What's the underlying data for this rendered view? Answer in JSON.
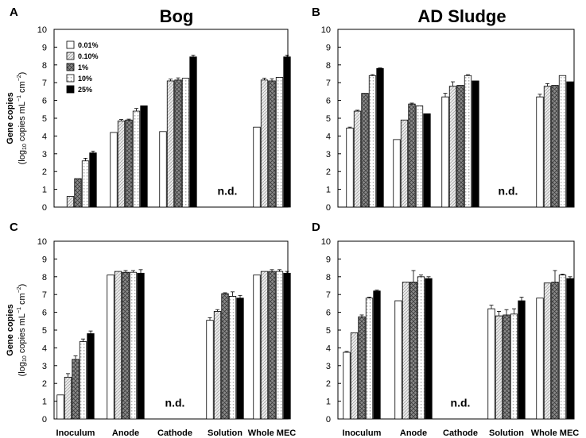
{
  "chart_data": [
    {
      "type": "bar",
      "panel": "A",
      "title": "Bog",
      "ylabel": "Gene copies (log10 copies mL−1 cm−2)",
      "ylim": [
        0,
        10
      ],
      "categories": [
        "Inoculum",
        "Anode",
        "Cathode",
        "Whole MEC"
      ],
      "annotation": "n.d.",
      "series": [
        {
          "name": "0.01%",
          "values": [
            null,
            4.2,
            4.25,
            4.5
          ],
          "errors": [
            0,
            0,
            0,
            0
          ]
        },
        {
          "name": "0.10%",
          "values": [
            0.6,
            4.85,
            7.1,
            7.15
          ],
          "errors": [
            0,
            0.08,
            0.1,
            0.1
          ]
        },
        {
          "name": "1%",
          "values": [
            1.6,
            4.9,
            7.15,
            7.1
          ],
          "errors": [
            0,
            0.05,
            0.12,
            0.12
          ]
        },
        {
          "name": "10%",
          "values": [
            2.6,
            5.4,
            7.25,
            7.3
          ],
          "errors": [
            0.15,
            0.15,
            0,
            0
          ]
        },
        {
          "name": "25%",
          "values": [
            3.05,
            5.7,
            8.45,
            8.45
          ],
          "errors": [
            0.1,
            0,
            0.1,
            0.1
          ]
        }
      ]
    },
    {
      "type": "bar",
      "panel": "B",
      "title": "AD Sludge",
      "ylabel": "",
      "ylim": [
        0,
        10
      ],
      "categories": [
        "Inoculum",
        "Anode",
        "Cathode",
        "Whole MEC"
      ],
      "annotation": "n.d.",
      "series": [
        {
          "name": "0.01%",
          "values": [
            4.45,
            3.8,
            6.2,
            6.2
          ],
          "errors": [
            0.05,
            0,
            0.2,
            0.15
          ]
        },
        {
          "name": "0.10%",
          "values": [
            5.4,
            4.9,
            6.8,
            6.8
          ],
          "errors": [
            0.05,
            0,
            0.25,
            0.15
          ]
        },
        {
          "name": "1%",
          "values": [
            6.4,
            5.8,
            6.85,
            6.85
          ],
          "errors": [
            0,
            0.05,
            0,
            0
          ]
        },
        {
          "name": "10%",
          "values": [
            7.4,
            5.7,
            7.4,
            7.4
          ],
          "errors": [
            0.05,
            0,
            0.05,
            0
          ]
        },
        {
          "name": "25%",
          "values": [
            7.8,
            5.25,
            7.1,
            7.05
          ],
          "errors": [
            0.03,
            0,
            0,
            0
          ]
        }
      ]
    },
    {
      "type": "bar",
      "panel": "C",
      "title": "",
      "ylabel": "Gene copies (log10 copies mL−1 cm−2)",
      "ylim": [
        0,
        10
      ],
      "categories": [
        "Inoculum",
        "Anode",
        "Cathode",
        "Solution",
        "Whole MEC"
      ],
      "annotation": "n.d.",
      "series": [
        {
          "name": "0.01%",
          "values": [
            1.35,
            8.1,
            null,
            5.55,
            8.1
          ],
          "errors": [
            0,
            0,
            0,
            0.15,
            0
          ]
        },
        {
          "name": "0.10%",
          "values": [
            2.35,
            8.3,
            null,
            6.05,
            8.3
          ],
          "errors": [
            0.2,
            0,
            0,
            0.1,
            0
          ]
        },
        {
          "name": "1%",
          "values": [
            3.35,
            8.25,
            null,
            7.05,
            8.3
          ],
          "errors": [
            0.2,
            0.1,
            0,
            0.05,
            0.1
          ]
        },
        {
          "name": "10%",
          "values": [
            4.35,
            8.25,
            null,
            6.9,
            8.3
          ],
          "errors": [
            0.15,
            0.1,
            0,
            0.25,
            0.1
          ]
        },
        {
          "name": "25%",
          "values": [
            4.8,
            8.2,
            null,
            6.8,
            8.2
          ],
          "errors": [
            0.15,
            0.2,
            0,
            0.15,
            0.1
          ]
        }
      ]
    },
    {
      "type": "bar",
      "panel": "D",
      "title": "",
      "ylabel": "",
      "ylim": [
        0,
        10
      ],
      "categories": [
        "Inoculum",
        "Anode",
        "Cathode",
        "Solution",
        "Whole MEC"
      ],
      "annotation": "n.d.",
      "series": [
        {
          "name": "0.01%",
          "values": [
            3.75,
            6.65,
            null,
            6.2,
            6.8
          ],
          "errors": [
            0.05,
            0,
            0,
            0.2,
            0
          ]
        },
        {
          "name": "0.10%",
          "values": [
            4.85,
            7.7,
            null,
            5.8,
            7.65
          ],
          "errors": [
            0,
            0,
            0,
            0.25,
            0
          ]
        },
        {
          "name": "1%",
          "values": [
            5.75,
            7.7,
            null,
            5.85,
            7.7
          ],
          "errors": [
            0.1,
            0.65,
            0,
            0.3,
            0.65
          ]
        },
        {
          "name": "10%",
          "values": [
            6.8,
            8.0,
            null,
            5.9,
            8.1
          ],
          "errors": [
            0.05,
            0.1,
            0,
            0.3,
            0.05
          ]
        },
        {
          "name": "25%",
          "values": [
            7.2,
            7.9,
            null,
            6.65,
            7.9
          ],
          "errors": [
            0.05,
            0.1,
            0,
            0.2,
            0.1
          ]
        }
      ]
    }
  ],
  "legend": [
    {
      "label": "0.01%"
    },
    {
      "label": "0.10%"
    },
    {
      "label": "1%"
    },
    {
      "label": "10%"
    },
    {
      "label": "25%"
    }
  ],
  "ylabel_parts": {
    "line1": "Gene copies",
    "pre": "(log",
    "sub": "10",
    "mid": " copies mL",
    "sup1": "−1",
    "cm": " cm",
    "sup2": "−2",
    "post": ")"
  },
  "y_ticks": [
    "0",
    "1",
    "2",
    "3",
    "4",
    "5",
    "6",
    "7",
    "8",
    "9",
    "10"
  ]
}
